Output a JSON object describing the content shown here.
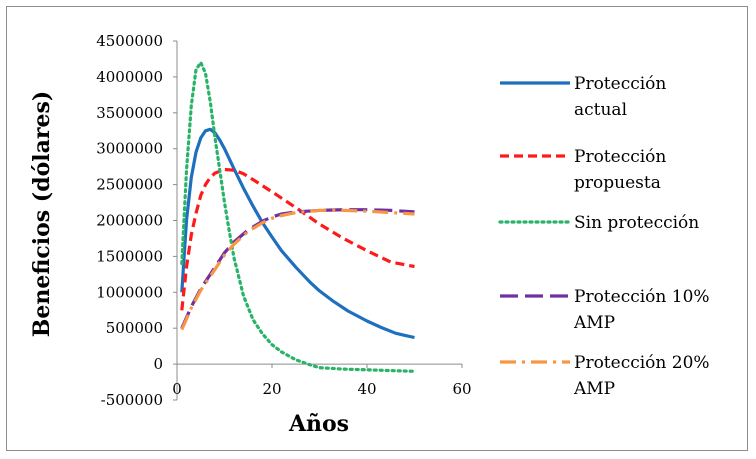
{
  "chart_data": {
    "type": "line",
    "title": "",
    "xlabel": "Años",
    "ylabel": "Beneficios (dólares)",
    "xlim": [
      0,
      60
    ],
    "ylim": [
      -500000,
      4500000
    ],
    "xticks": [
      "0",
      "20",
      "40",
      "60"
    ],
    "yticks": [
      "4500000",
      "4000000",
      "3500000",
      "3000000",
      "2500000",
      "2000000",
      "1500000",
      "1000000",
      "500000",
      "0",
      "-500000"
    ],
    "legend_position": "right",
    "grid": false,
    "series": [
      {
        "name": "Protección actual",
        "legend_lines": [
          "Protección",
          "actual"
        ],
        "color": "#1f6fbf",
        "dash": "solid",
        "x": [
          1,
          2,
          3,
          4,
          5,
          6,
          7,
          8,
          9,
          10,
          12,
          14,
          16,
          18,
          20,
          22,
          25,
          28,
          30,
          33,
          36,
          40,
          43,
          46,
          48,
          50
        ],
        "y": [
          1000000,
          2000000,
          2600000,
          2950000,
          3150000,
          3250000,
          3270000,
          3220000,
          3120000,
          3000000,
          2720000,
          2450000,
          2200000,
          1970000,
          1770000,
          1580000,
          1350000,
          1140000,
          1020000,
          870000,
          740000,
          600000,
          510000,
          430000,
          400000,
          370000
        ]
      },
      {
        "name": "Protección propuesta",
        "legend_lines": [
          "Protección",
          "propuesta"
        ],
        "color": "#ff1a1a",
        "dash": "dashed",
        "x": [
          1,
          2,
          3,
          4,
          5,
          6,
          7,
          8,
          10,
          12,
          14,
          16,
          20,
          25,
          30,
          35,
          40,
          45,
          50
        ],
        "y": [
          750000,
          1350000,
          1800000,
          2100000,
          2350000,
          2500000,
          2600000,
          2660000,
          2710000,
          2700000,
          2650000,
          2570000,
          2400000,
          2180000,
          1950000,
          1750000,
          1580000,
          1420000,
          1360000
        ]
      },
      {
        "name": "Sin protección",
        "legend_lines": [
          "Sin protección"
        ],
        "color": "#2ab368",
        "dash": "dotted",
        "x": [
          1,
          2,
          3,
          4,
          5,
          6,
          7,
          8,
          9,
          10,
          11,
          12,
          14,
          16,
          18,
          20,
          22,
          25,
          28,
          30,
          35,
          40,
          45,
          50
        ],
        "y": [
          1400000,
          2700000,
          3600000,
          4100000,
          4200000,
          4050000,
          3650000,
          3150000,
          2700000,
          2250000,
          1850000,
          1480000,
          950000,
          620000,
          420000,
          270000,
          170000,
          60000,
          -10000,
          -50000,
          -70000,
          -80000,
          -90000,
          -100000
        ]
      },
      {
        "name": "Protección 10% AMP",
        "legend_lines": [
          "Protección 10%",
          "AMP"
        ],
        "color": "#7030a0",
        "dash": "longdash",
        "x": [
          1,
          3,
          5,
          8,
          10,
          12,
          15,
          18,
          20,
          22,
          25,
          30,
          35,
          40,
          45,
          50
        ],
        "y": [
          500000,
          800000,
          1050000,
          1350000,
          1550000,
          1700000,
          1870000,
          1990000,
          2050000,
          2090000,
          2120000,
          2140000,
          2150000,
          2150000,
          2140000,
          2120000
        ]
      },
      {
        "name": "Protección 20% AMP",
        "legend_lines": [
          "Protección 20%",
          "AMP"
        ],
        "color": "#f79646",
        "dash": "dashdot",
        "x": [
          1,
          3,
          5,
          8,
          10,
          12,
          15,
          18,
          20,
          22,
          25,
          28,
          30,
          35,
          40,
          45,
          50
        ],
        "y": [
          480000,
          780000,
          1030000,
          1320000,
          1520000,
          1670000,
          1850000,
          1970000,
          2030000,
          2070000,
          2110000,
          2130000,
          2140000,
          2140000,
          2130000,
          2110000,
          2090000
        ]
      }
    ]
  }
}
